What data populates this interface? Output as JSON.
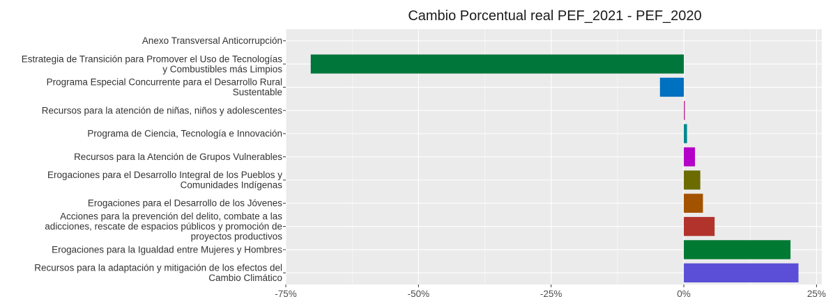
{
  "chart_data": {
    "type": "bar",
    "orientation": "horizontal",
    "title": "Cambio Porcentual real PEF_2021 - PEF_2020",
    "xlabel": "",
    "ylabel": "",
    "xlim": [
      -75,
      26
    ],
    "x_ticks": [
      -75,
      -50,
      -25,
      0,
      25
    ],
    "x_tick_labels": [
      "-75%",
      "-50%",
      "-25%",
      "0%",
      "25%"
    ],
    "grid": true,
    "legend": "none",
    "categories": [
      [
        "Anexo Transversal Anticorrupción"
      ],
      [
        "Estrategia de Transición para Promover el Uso de Tecnologías",
        "y Combustibles más Limpios"
      ],
      [
        "Programa Especial Concurrente para el Desarrollo Rural",
        "Sustentable"
      ],
      [
        "Recursos para la atención de niñas, niños y adolescentes"
      ],
      [
        "Programa de Ciencia, Tecnología e Innovación"
      ],
      [
        "Recursos para la Atención de Grupos Vulnerables"
      ],
      [
        "Erogaciones para el Desarrollo Integral de los Pueblos y",
        "Comunidades Indígenas"
      ],
      [
        "Erogaciones para el Desarrollo de los Jóvenes"
      ],
      [
        "Acciones para la prevención del delito, combate a las",
        "adicciones, rescate de espacios públicos y promoción de",
        "proyectos productivos"
      ],
      [
        "Erogaciones para la Igualdad entre Mujeres y Hombres"
      ],
      [
        "Recursos para la adaptación y mitigación de los efectos del",
        "Cambio Climático"
      ]
    ],
    "values": [
      0,
      -70.3,
      -4.5,
      0.2,
      0.6,
      2.1,
      3.1,
      3.6,
      5.8,
      20.1,
      21.6
    ],
    "colors": [
      "#888888",
      "#00763b",
      "#0070c0",
      "#c0329b",
      "#00888f",
      "#b400c8",
      "#6b6b00",
      "#a35200",
      "#b2332c",
      "#007a33",
      "#5a4fd6"
    ],
    "panel_background": "#ebebeb"
  }
}
